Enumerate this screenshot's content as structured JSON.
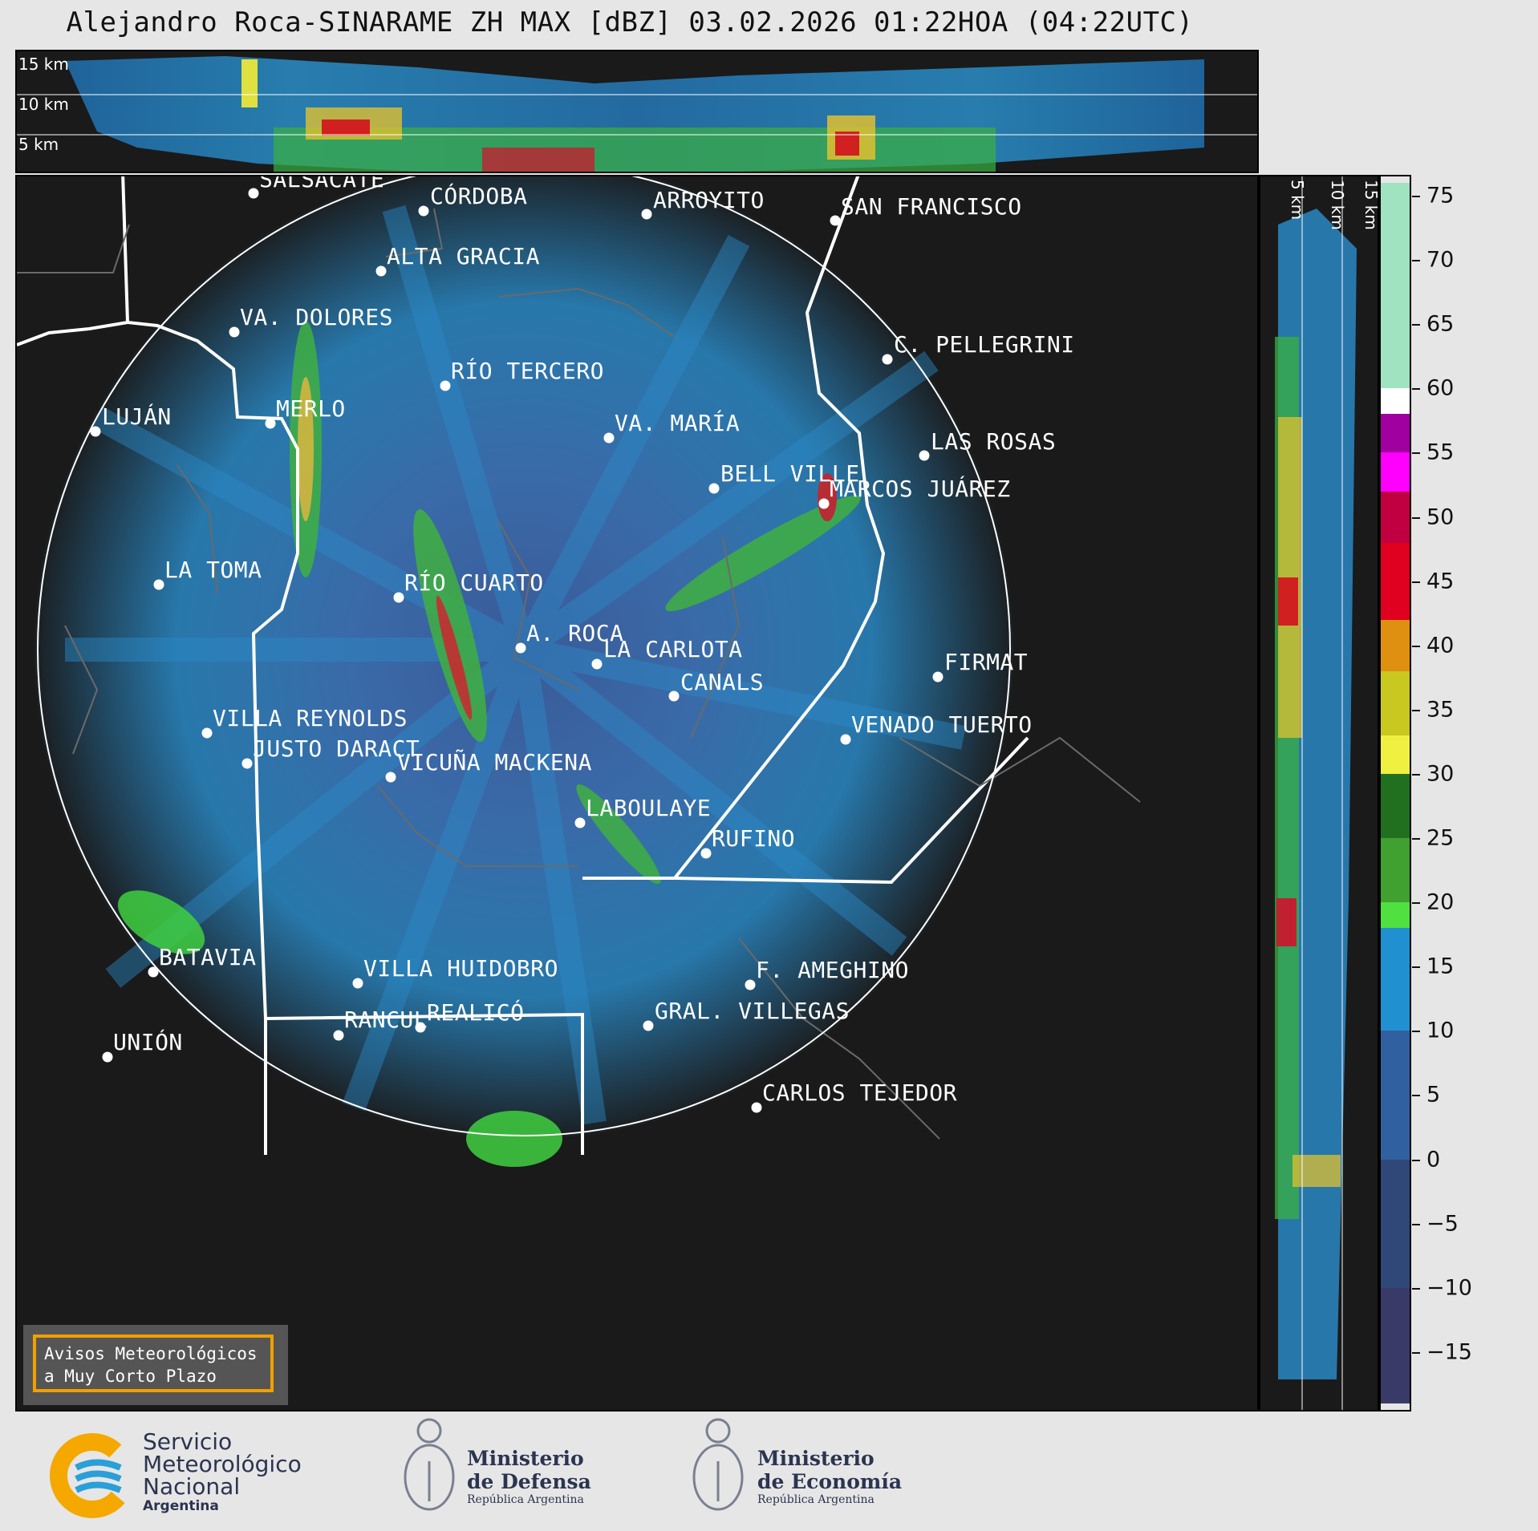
{
  "title": "Alejandro Roca-SINARAME ZH MAX [dBZ] 03.02.2026 01:22HOA (04:22UTC)",
  "top_panel": {
    "km_labels": [
      "15 km",
      "10 km",
      "5 km"
    ]
  },
  "side_panel": {
    "km_labels": [
      "5 km",
      "10 km",
      "15 km"
    ]
  },
  "colorbar": {
    "ticks": [
      "75",
      "70",
      "65",
      "60",
      "55",
      "50",
      "45",
      "40",
      "35",
      "30",
      "25",
      "20",
      "15",
      "10",
      "5",
      "0",
      "−5",
      "−10",
      "−15"
    ],
    "bands": [
      {
        "from": 60,
        "to": 76,
        "color": "#9fe3c0"
      },
      {
        "from": 58,
        "to": 60,
        "color": "#ffffff"
      },
      {
        "from": 55,
        "to": 58,
        "color": "#a000a0"
      },
      {
        "from": 52,
        "to": 55,
        "color": "#ff00ff"
      },
      {
        "from": 48,
        "to": 52,
        "color": "#c00040"
      },
      {
        "from": 42,
        "to": 48,
        "color": "#e00020"
      },
      {
        "from": 38,
        "to": 42,
        "color": "#e09010"
      },
      {
        "from": 33,
        "to": 38,
        "color": "#c8c820"
      },
      {
        "from": 30,
        "to": 33,
        "color": "#f0f040"
      },
      {
        "from": 25,
        "to": 30,
        "color": "#207020"
      },
      {
        "from": 20,
        "to": 25,
        "color": "#40a030"
      },
      {
        "from": 18,
        "to": 20,
        "color": "#50e040"
      },
      {
        "from": 10,
        "to": 18,
        "color": "#2090d0"
      },
      {
        "from": 0,
        "to": 10,
        "color": "#3060a0"
      },
      {
        "from": -10,
        "to": 0,
        "color": "#304878"
      },
      {
        "from": -19,
        "to": -10,
        "color": "#3a3a68"
      }
    ]
  },
  "cities": [
    {
      "name": "SALSACATE",
      "dot": [
        316,
        241
      ],
      "label": [
        323,
        225
      ]
    },
    {
      "name": "CÓRDOBA",
      "dot": [
        528,
        263
      ],
      "label": [
        536,
        246
      ]
    },
    {
      "name": "ARROYITO",
      "dot": [
        806,
        267
      ],
      "label": [
        814,
        251
      ]
    },
    {
      "name": "SAN FRANCISCO",
      "dot": [
        1041,
        275
      ],
      "label": [
        1048,
        259
      ]
    },
    {
      "name": "ALTA GRACIA",
      "dot": [
        475,
        338
      ],
      "label": [
        482,
        321
      ]
    },
    {
      "name": "VA. DOLORES",
      "dot": [
        292,
        414
      ],
      "label": [
        299,
        397
      ]
    },
    {
      "name": "C. PELLEGRINI",
      "dot": [
        1106,
        448
      ],
      "label": [
        1114,
        431
      ]
    },
    {
      "name": "RÍO TERCERO",
      "dot": [
        555,
        481
      ],
      "label": [
        562,
        464
      ]
    },
    {
      "name": "LUJÁN",
      "dot": [
        119,
        538
      ],
      "label": [
        127,
        521
      ]
    },
    {
      "name": "MERLO",
      "dot": [
        337,
        528
      ],
      "label": [
        344,
        511
      ]
    },
    {
      "name": "VA. MARÍA",
      "dot": [
        759,
        546
      ],
      "label": [
        766,
        529
      ]
    },
    {
      "name": "LAS ROSAS",
      "dot": [
        1152,
        568
      ],
      "label": [
        1160,
        552
      ]
    },
    {
      "name": "BELL VILLE",
      "dot": [
        890,
        609
      ],
      "label": [
        898,
        592
      ]
    },
    {
      "name": "MARCOS JUÁREZ",
      "dot": [
        1027,
        628
      ],
      "label": [
        1034,
        611
      ]
    },
    {
      "name": "LA TOMA",
      "dot": [
        198,
        729
      ],
      "label": [
        205,
        712
      ]
    },
    {
      "name": "RÍO CUARTO",
      "dot": [
        497,
        745
      ],
      "label": [
        504,
        728
      ]
    },
    {
      "name": "A. ROCA",
      "dot": [
        649,
        808
      ],
      "label": [
        656,
        791
      ]
    },
    {
      "name": "LA CARLOTA",
      "dot": [
        744,
        828
      ],
      "label": [
        752,
        811
      ]
    },
    {
      "name": "FIRMAT",
      "dot": [
        1169,
        844
      ],
      "label": [
        1177,
        827
      ]
    },
    {
      "name": "CANALS",
      "dot": [
        840,
        868
      ],
      "label": [
        848,
        852
      ]
    },
    {
      "name": "VILLA REYNOLDS",
      "dot": [
        258,
        914
      ],
      "label": [
        265,
        897
      ]
    },
    {
      "name": "VENADO TUERTO",
      "dot": [
        1054,
        922
      ],
      "label": [
        1061,
        905
      ]
    },
    {
      "name": "JUSTO DARACT",
      "dot": [
        308,
        952
      ],
      "label": [
        315,
        935
      ]
    },
    {
      "name": "VICUÑA MACKENA",
      "dot": [
        487,
        969
      ],
      "label": [
        495,
        952
      ]
    },
    {
      "name": "LABOULAYE",
      "dot": [
        723,
        1026
      ],
      "label": [
        730,
        1009
      ]
    },
    {
      "name": "RUFINO",
      "dot": [
        880,
        1064
      ],
      "label": [
        887,
        1047
      ]
    },
    {
      "name": "BATAVIA",
      "dot": [
        191,
        1212
      ],
      "label": [
        198,
        1195
      ]
    },
    {
      "name": "VILLA HUIDOBRO",
      "dot": [
        446,
        1226
      ],
      "label": [
        453,
        1209
      ]
    },
    {
      "name": "F. AMEGHINO",
      "dot": [
        935,
        1228
      ],
      "label": [
        942,
        1211
      ]
    },
    {
      "name": "RANCUL",
      "dot": [
        422,
        1291
      ],
      "label": [
        429,
        1273
      ]
    },
    {
      "name": "REALICÓ",
      "dot": [
        524,
        1281
      ],
      "label": [
        532,
        1264
      ]
    },
    {
      "name": "GRAL. VILLEGAS",
      "dot": [
        808,
        1279
      ],
      "label": [
        816,
        1262
      ]
    },
    {
      "name": "UNIÓN",
      "dot": [
        134,
        1318
      ],
      "label": [
        141,
        1301
      ]
    },
    {
      "name": "CARLOS TEJEDOR",
      "dot": [
        943,
        1381
      ],
      "label": [
        950,
        1364
      ]
    }
  ],
  "notice": {
    "line1": "Avisos Meteorológicos",
    "line2": "a Muy Corto Plazo"
  },
  "logos": {
    "smn": {
      "line1": "Servicio",
      "line2": "Meteorológico",
      "line3": "Nacional",
      "line4": "Argentina",
      "colors": [
        "#f5a800",
        "#2a9fd8"
      ]
    },
    "defensa": {
      "line1": "Ministerio",
      "line2": "de Defensa",
      "line3": "República Argentina"
    },
    "economia": {
      "line1": "Ministerio",
      "line2": "de Economía",
      "line3": "República Argentina"
    }
  }
}
